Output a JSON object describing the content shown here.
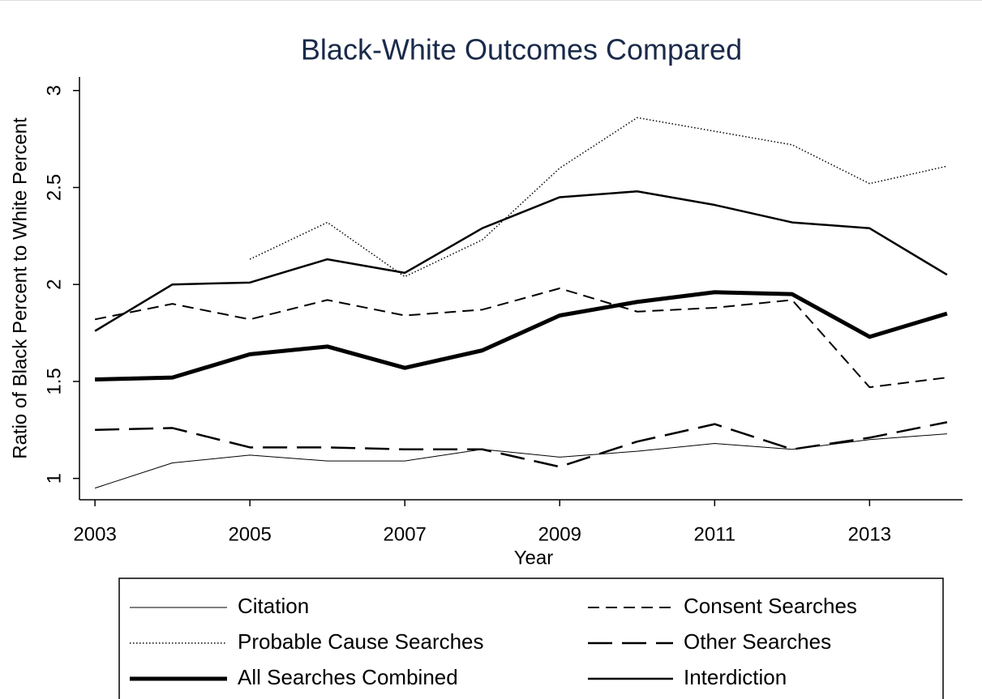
{
  "chart_data": {
    "type": "line",
    "title": "Black-White Outcomes Compared",
    "x_label": "Year",
    "y_label": "Ratio of Black Percent to White Percent",
    "x": [
      2003,
      2004,
      2005,
      2006,
      2007,
      2008,
      2009,
      2010,
      2011,
      2012,
      2013,
      2014
    ],
    "xlim": [
      2002.8,
      2014.2
    ],
    "xticks": [
      2003,
      2005,
      2007,
      2009,
      2011,
      2013
    ],
    "ylim": [
      0.89,
      3.07
    ],
    "yticks": [
      1,
      1.5,
      2,
      2.5,
      3
    ],
    "grid": false,
    "legend": "bottom",
    "series": [
      {
        "name": "Citation",
        "color": "#000000",
        "line_style": "thin",
        "values": [
          0.95,
          1.08,
          1.12,
          1.09,
          1.09,
          1.15,
          1.11,
          1.14,
          1.18,
          1.15,
          1.2,
          1.23
        ]
      },
      {
        "name": "Consent Searches",
        "color": "#000000",
        "line_style": "dashed",
        "values": [
          1.82,
          1.9,
          1.82,
          1.92,
          1.84,
          1.87,
          1.98,
          1.86,
          1.88,
          1.92,
          1.47,
          1.52
        ]
      },
      {
        "name": "Probable Cause Searches",
        "color": "#000000",
        "line_style": "dotted",
        "values": [
          null,
          null,
          2.13,
          2.32,
          2.04,
          2.23,
          2.6,
          2.86,
          2.79,
          2.72,
          2.52,
          2.61
        ]
      },
      {
        "name": "Other Searches",
        "color": "#000000",
        "line_style": "longdash",
        "values": [
          1.25,
          1.26,
          1.16,
          1.16,
          1.15,
          1.15,
          1.06,
          1.19,
          1.28,
          1.15,
          1.21,
          1.29
        ]
      },
      {
        "name": "All Searches Combined",
        "color": "#000000",
        "line_style": "thick",
        "values": [
          1.51,
          1.52,
          1.64,
          1.68,
          1.57,
          1.66,
          1.84,
          1.91,
          1.96,
          1.95,
          1.73,
          1.85
        ]
      },
      {
        "name": "Interdiction",
        "color": "#000000",
        "line_style": "solid",
        "values": [
          1.76,
          2.0,
          2.01,
          2.13,
          2.06,
          2.29,
          2.45,
          2.48,
          2.41,
          2.32,
          2.29,
          2.05
        ]
      }
    ]
  }
}
